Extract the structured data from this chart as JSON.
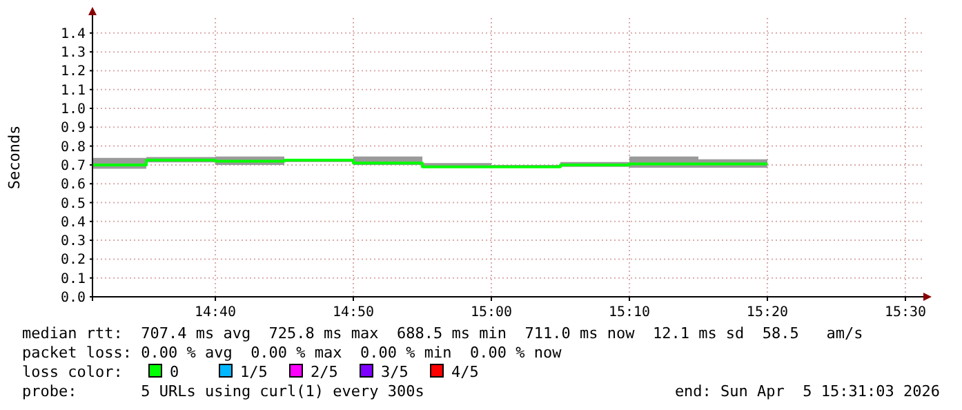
{
  "chart_data": {
    "type": "step",
    "ylabel": "Seconds",
    "x": [
      14.5183,
      14.5833,
      14.6667,
      14.75,
      14.8333,
      14.9167,
      15.0,
      15.0833,
      15.1667,
      15.25,
      15.3333
    ],
    "series": [
      {
        "color": "#00ff00",
        "values": [
          0.7,
          0.725,
          0.72,
          0.725,
          0.71,
          0.69,
          0.69,
          0.7,
          0.705,
          0.705,
          0.705
        ],
        "lower": [
          0.68,
          0.713,
          0.7,
          0.715,
          0.7,
          0.685,
          0.685,
          0.69,
          0.685,
          0.685,
          0.685
        ],
        "upper": [
          0.737,
          0.742,
          0.745,
          0.73,
          0.745,
          0.71,
          0.7,
          0.715,
          0.745,
          0.73,
          0.73
        ]
      }
    ],
    "xlim": [
      14.5183,
      15.52
    ],
    "xticks": [
      {
        "value": 14.6667,
        "label": "14:40"
      },
      {
        "value": 14.8333,
        "label": "14:50"
      },
      {
        "value": 15.0,
        "label": "15:00"
      },
      {
        "value": 15.1667,
        "label": "15:10"
      },
      {
        "value": 15.3333,
        "label": "15:20"
      },
      {
        "value": 15.5,
        "label": "15:30"
      }
    ],
    "ylim": [
      0,
      1.48
    ],
    "yticks": [
      {
        "value": 0,
        "label": "0.0"
      },
      {
        "value": 0.1,
        "label": "0.1"
      },
      {
        "value": 0.2,
        "label": "0.2"
      },
      {
        "value": 0.3,
        "label": "0.3"
      },
      {
        "value": 0.4,
        "label": "0.4"
      },
      {
        "value": 0.5,
        "label": "0.5"
      },
      {
        "value": 0.6,
        "label": "0.6"
      },
      {
        "value": 0.7,
        "label": "0.7"
      },
      {
        "value": 0.8,
        "label": "0.8"
      },
      {
        "value": 0.9,
        "label": "0.9"
      },
      {
        "value": 1.0,
        "label": "1.0"
      },
      {
        "value": 1.1,
        "label": "1.1"
      },
      {
        "value": 1.2,
        "label": "1.2"
      },
      {
        "value": 1.3,
        "label": "1.3"
      },
      {
        "value": 1.4,
        "label": "1.4"
      }
    ],
    "grid": true,
    "annotations": [
      "median rtt:  707.4 ms avg  725.8 ms max  688.5 ms min  711.0 ms now  12.1 ms sd  58.5   am/s",
      "packet loss: 0.00 % avg  0.00 % max  0.00 % min  0.00 % now",
      "loss color:",
      "0",
      "1/5",
      "2/5",
      "3/5",
      "4/5",
      "probe:       5 URLs using curl(1) every 300s",
      "end: Sun Apr  5 15:31:03 2026"
    ]
  }
}
